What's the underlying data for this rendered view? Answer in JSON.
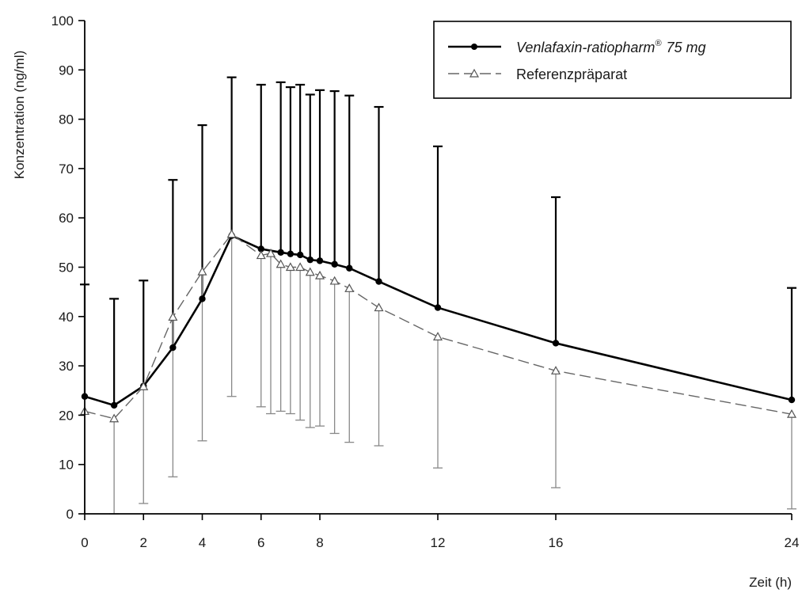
{
  "chart_data": {
    "type": "line",
    "xlabel": "Zeit (h)",
    "ylabel": "Konzentration (ng/ml)",
    "xlim": [
      0,
      24
    ],
    "ylim": [
      0,
      100
    ],
    "x_ticks": [
      0,
      2,
      4,
      6,
      8,
      12,
      16,
      24
    ],
    "y_ticks": [
      0,
      10,
      20,
      30,
      40,
      50,
      60,
      70,
      80,
      90,
      100
    ],
    "x_scale": "piecewise-linear: 0–8 h and 8–24 h on different spacing",
    "grid": false,
    "legend_position": "top-right",
    "x": [
      0,
      1,
      2,
      3,
      4,
      5,
      6,
      6.33,
      6.67,
      7,
      7.33,
      7.67,
      8,
      8.5,
      9,
      10,
      12,
      16,
      24
    ],
    "series": [
      {
        "name": "Venlafaxin-ratiopharm",
        "name_superscript": "®",
        "name_suffix": "75 mg",
        "style": "solid line, filled circle markers",
        "color": "#000000",
        "x": [
          0,
          1,
          2,
          3,
          4,
          5,
          6,
          6.67,
          7,
          7.33,
          7.67,
          8,
          8.5,
          9,
          10,
          12,
          16,
          24
        ],
        "values": [
          23.8,
          22.0,
          25.9,
          33.7,
          43.6,
          56.4,
          53.7,
          53.0,
          52.7,
          52.5,
          51.5,
          51.3,
          50.6,
          49.8,
          47.1,
          41.8,
          34.6,
          23.1
        ],
        "error_upper": [
          46.5,
          43.6,
          47.3,
          67.7,
          78.8,
          88.5,
          87.0,
          87.5,
          86.5,
          87.0,
          85.0,
          85.9,
          85.7,
          84.8,
          82.5,
          74.5,
          64.2,
          45.8
        ],
        "error_lower": [
          0,
          0,
          2.1,
          7.5,
          14.8,
          23.8,
          21.7,
          20.8,
          20.3,
          19.0,
          17.5,
          17.8,
          16.3,
          14.5,
          13.8,
          9.3,
          5.3,
          1.0
        ]
      },
      {
        "name": "Referenzpräparat",
        "style": "dashed line, open triangle markers",
        "color": "#555555",
        "x": [
          0,
          1,
          2,
          3,
          4,
          5,
          6,
          6.33,
          6.67,
          7,
          7.33,
          7.67,
          8,
          8.5,
          9,
          10,
          12,
          16,
          24
        ],
        "values": [
          20.8,
          19.3,
          25.8,
          39.9,
          49.1,
          56.7,
          52.4,
          52.8,
          50.6,
          50.0,
          50.0,
          49.0,
          48.3,
          47.2,
          45.7,
          41.8,
          35.9,
          29.0,
          20.2
        ],
        "error_upper": [
          46.5,
          43.6,
          47.3,
          67.7,
          78.8,
          88.5,
          87.0,
          84.2,
          87.5,
          86.5,
          87.0,
          85.0,
          85.9,
          85.7,
          84.8,
          82.5,
          74.5,
          64.2,
          45.8
        ],
        "error_lower": [
          0,
          0,
          2.1,
          7.5,
          14.8,
          23.8,
          21.7,
          20.3,
          20.8,
          20.3,
          19.0,
          17.5,
          17.8,
          16.3,
          14.5,
          13.8,
          9.3,
          5.3,
          1.0
        ]
      }
    ]
  }
}
